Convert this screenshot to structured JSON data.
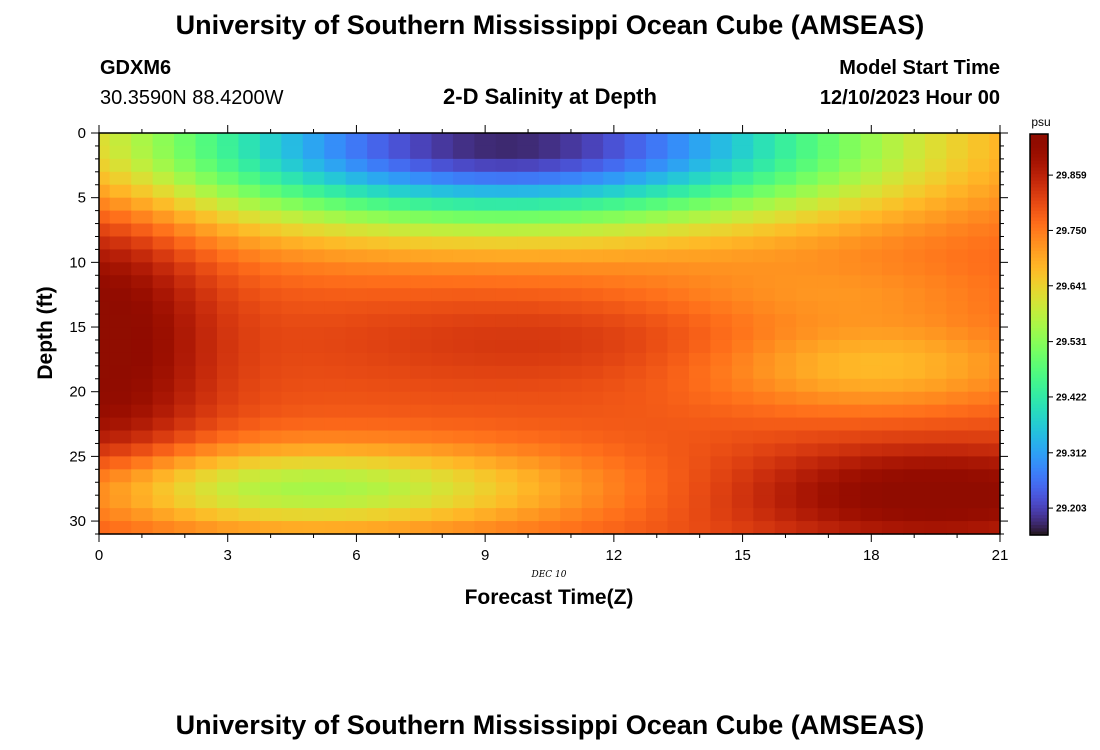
{
  "header": {
    "title": "University of Southern Mississippi Ocean Cube (AMSEAS)",
    "station_id": "GDXM6",
    "coordinates": "30.3590N  88.4200W",
    "plot_title": "2-D Salinity at Depth",
    "start_label": "Model Start Time",
    "start_value": "12/10/2023 Hour 00"
  },
  "footer": {
    "title": "University of Southern Mississippi Ocean Cube (AMSEAS)"
  },
  "chart_data": {
    "type": "heatmap",
    "title": "2-D Salinity at Depth",
    "xlabel": "Forecast Time(Z)",
    "ylabel": "Depth (ft)",
    "x_sublabel": "DEC 10",
    "xlim": [
      0,
      21
    ],
    "ylim": [
      31,
      0
    ],
    "x_ticks": [
      0,
      3,
      6,
      9,
      12,
      15,
      18,
      21
    ],
    "y_ticks": [
      0,
      5,
      10,
      15,
      20,
      25,
      30
    ],
    "colorbar": {
      "unit": "psu",
      "range": [
        29.15,
        29.94
      ],
      "tick_values": [
        29.859,
        29.75,
        29.641,
        29.531,
        29.422,
        29.312,
        29.203
      ],
      "tick_labels": [
        "29.859",
        "29.750",
        "29.641",
        "29.531",
        "29.422",
        "29.312",
        "29.203"
      ],
      "colormap": "turbo"
    },
    "grid": {
      "nx": 43,
      "ny": 31,
      "x_step_hours": 0.5,
      "y_step_ft": 1
    },
    "z_description_points": [
      {
        "x": 0.5,
        "y": 18,
        "value": 29.92
      },
      {
        "x": 7,
        "y": 0.5,
        "value": 29.16
      },
      {
        "x": 5,
        "y": 27,
        "value": 29.56
      },
      {
        "x": 19.5,
        "y": 28,
        "value": 29.93
      },
      {
        "x": 18,
        "y": 18,
        "value": 29.66
      },
      {
        "x": 10,
        "y": 16,
        "value": 29.8
      }
    ]
  }
}
